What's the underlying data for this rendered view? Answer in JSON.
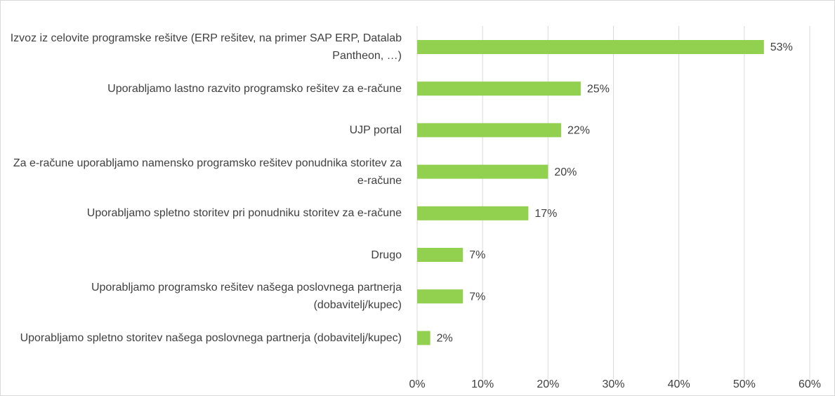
{
  "chart_data": {
    "type": "bar",
    "orientation": "horizontal",
    "categories": [
      "Izvoz iz celovite programske rešitve (ERP rešitev, na primer SAP ERP, Datalab Pantheon, …)",
      "Uporabljamo lastno razvito programsko rešitev za e-račune",
      "UJP portal",
      "Za e-račune uporabljamo namensko programsko rešitev ponudnika storitev za e-račune",
      "Uporabljamo spletno storitev pri ponudniku storitev za e-račune",
      "Drugo",
      "Uporabljamo programsko rešitev našega poslovnega partnerja (dobavitelj/kupec)",
      "Uporabljamo spletno storitev našega poslovnega partnerja (dobavitelj/kupec)"
    ],
    "values": [
      53,
      25,
      22,
      20,
      17,
      7,
      7,
      2
    ],
    "value_labels": [
      "53%",
      "25%",
      "22%",
      "20%",
      "17%",
      "7%",
      "7%",
      "2%"
    ],
    "color": "#92d050",
    "xlim": [
      0,
      60
    ],
    "xticks": [
      {
        "value": 0,
        "label": "0%"
      },
      {
        "value": 10,
        "label": "10%"
      },
      {
        "value": 20,
        "label": "20%"
      },
      {
        "value": 30,
        "label": "30%"
      },
      {
        "value": 40,
        "label": "40%"
      },
      {
        "value": 50,
        "label": "50%"
      },
      {
        "value": 60,
        "label": "60%"
      }
    ],
    "grid": true
  }
}
